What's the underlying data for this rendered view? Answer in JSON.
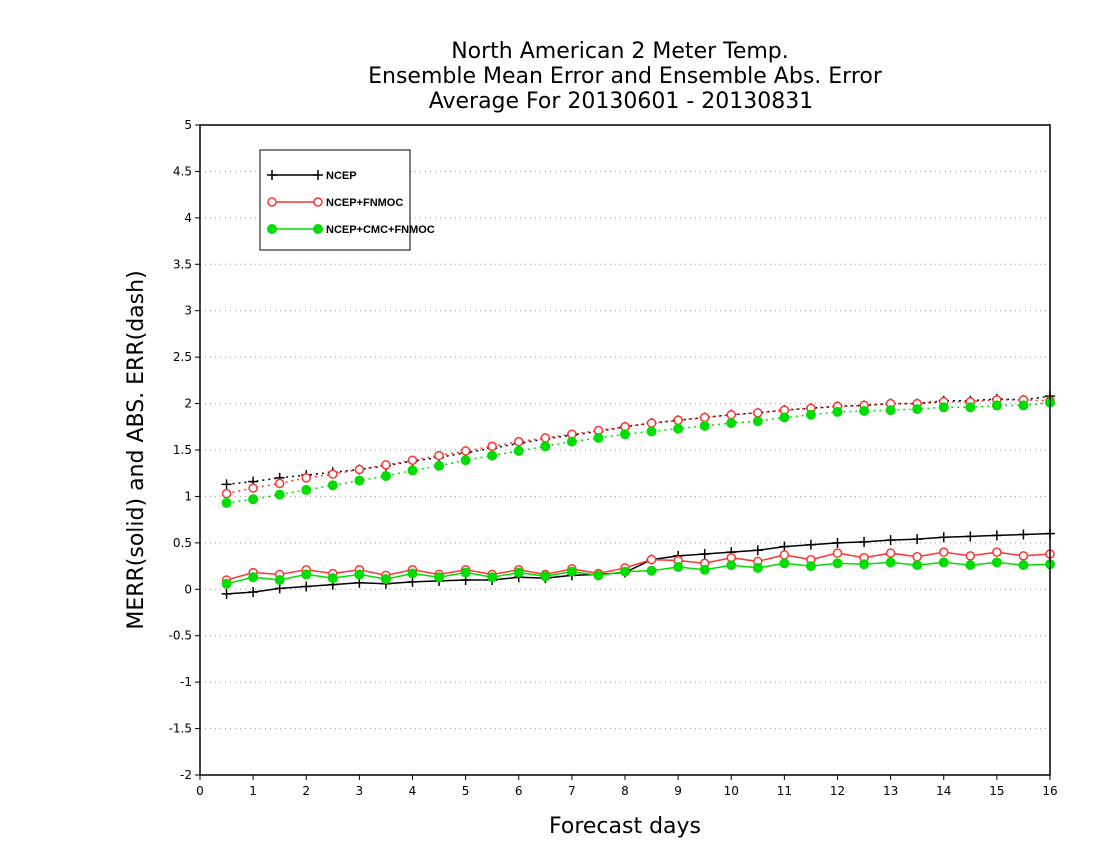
{
  "chart_data": {
    "type": "line",
    "title": [
      "North American 2 Meter Temp.",
      "Ensemble Mean Error and Ensemble Abs. Error",
      "Average For 20130601 - 20130831"
    ],
    "xlabel": "Forecast days",
    "ylabel": "MERR(solid) and ABS. ERR(dash)",
    "xlim": [
      0,
      16
    ],
    "ylim": [
      -2,
      5
    ],
    "x_ticks": [
      "0",
      "1",
      "2",
      "3",
      "4",
      "5",
      "6",
      "7",
      "8",
      "9",
      "10",
      "11",
      "12",
      "13",
      "14",
      "15",
      "16"
    ],
    "y_ticks": [
      "-2",
      "-1.5",
      "-1",
      "-0.5",
      "0",
      "0.5",
      "1",
      "1.5",
      "2",
      "2.5",
      "3",
      "3.5",
      "4",
      "4.5",
      "5"
    ],
    "grid": "horizontal dotted",
    "legend_position": "top-left",
    "x": [
      0.5,
      1,
      1.5,
      2,
      2.5,
      3,
      3.5,
      4,
      4.5,
      5,
      5.5,
      6,
      6.5,
      7,
      7.5,
      8,
      8.5,
      9,
      9.5,
      10,
      10.5,
      11,
      11.5,
      12,
      12.5,
      13,
      13.5,
      14,
      14.5,
      15,
      15.5,
      16
    ],
    "series": [
      {
        "name": "NCEP",
        "color": "#000000",
        "marker": "plus",
        "mean_error": [
          -0.05,
          -0.03,
          0.01,
          0.03,
          0.05,
          0.07,
          0.06,
          0.08,
          0.09,
          0.1,
          0.1,
          0.13,
          0.12,
          0.15,
          0.16,
          0.18,
          0.32,
          0.36,
          0.38,
          0.4,
          0.42,
          0.46,
          0.48,
          0.5,
          0.51,
          0.53,
          0.54,
          0.56,
          0.57,
          0.58,
          0.59,
          0.6
        ],
        "abs_error": [
          1.13,
          1.16,
          1.2,
          1.23,
          1.26,
          1.29,
          1.33,
          1.38,
          1.42,
          1.47,
          1.52,
          1.57,
          1.62,
          1.66,
          1.7,
          1.75,
          1.79,
          1.82,
          1.85,
          1.88,
          1.9,
          1.93,
          1.95,
          1.97,
          1.98,
          2.0,
          2.0,
          2.03,
          2.03,
          2.05,
          2.04,
          2.08
        ]
      },
      {
        "name": "NCEP+FNMOC",
        "color": "#ff3333",
        "marker": "open-circle",
        "mean_error": [
          0.1,
          0.18,
          0.16,
          0.21,
          0.17,
          0.21,
          0.15,
          0.21,
          0.16,
          0.21,
          0.16,
          0.21,
          0.16,
          0.22,
          0.17,
          0.23,
          0.32,
          0.31,
          0.28,
          0.34,
          0.3,
          0.37,
          0.32,
          0.39,
          0.34,
          0.39,
          0.35,
          0.4,
          0.36,
          0.4,
          0.36,
          0.38
        ],
        "abs_error": [
          1.03,
          1.09,
          1.14,
          1.2,
          1.24,
          1.29,
          1.34,
          1.39,
          1.44,
          1.49,
          1.54,
          1.59,
          1.63,
          1.67,
          1.71,
          1.75,
          1.79,
          1.82,
          1.85,
          1.88,
          1.9,
          1.93,
          1.95,
          1.97,
          1.98,
          2.0,
          2.0,
          2.02,
          2.02,
          2.04,
          2.04,
          2.03
        ]
      },
      {
        "name": "NCEP+CMC+FNMOC",
        "color": "#00dd00",
        "marker": "filled-circle",
        "mean_error": [
          0.06,
          0.13,
          0.1,
          0.16,
          0.12,
          0.16,
          0.11,
          0.17,
          0.13,
          0.18,
          0.13,
          0.18,
          0.14,
          0.19,
          0.15,
          0.19,
          0.2,
          0.24,
          0.21,
          0.26,
          0.23,
          0.28,
          0.25,
          0.28,
          0.27,
          0.29,
          0.26,
          0.29,
          0.26,
          0.29,
          0.26,
          0.27
        ],
        "abs_error": [
          0.93,
          0.97,
          1.02,
          1.07,
          1.12,
          1.17,
          1.22,
          1.28,
          1.33,
          1.39,
          1.44,
          1.49,
          1.54,
          1.59,
          1.63,
          1.67,
          1.7,
          1.73,
          1.76,
          1.79,
          1.81,
          1.85,
          1.88,
          1.91,
          1.92,
          1.93,
          1.94,
          1.96,
          1.96,
          1.98,
          1.98,
          2.01
        ]
      }
    ]
  }
}
